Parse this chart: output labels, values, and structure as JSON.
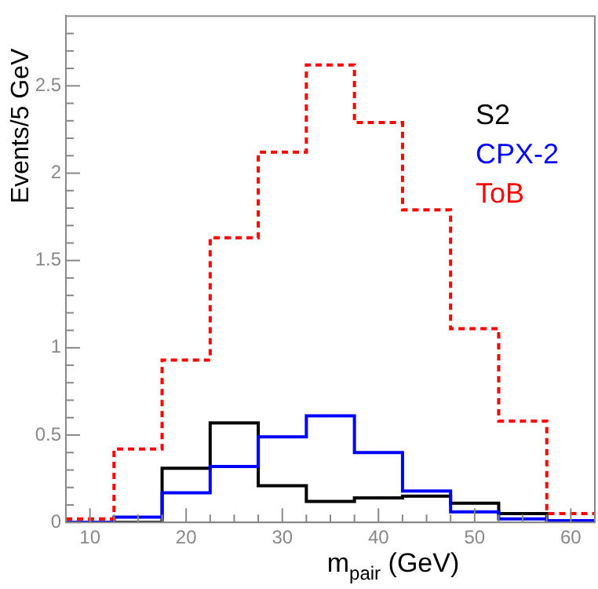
{
  "chart_data": {
    "type": "histogram",
    "xlabel": "m$_{pair}$ (GeV)",
    "ylabel": "Events/5 GeV",
    "bins": [
      7.5,
      12.5,
      17.5,
      22.5,
      27.5,
      32.5,
      37.5,
      42.5,
      47.5,
      52.5,
      57.5,
      62.5
    ],
    "series": [
      {
        "name": "S2",
        "color": "#000000",
        "values": [
          0,
          0,
          0.31,
          0.57,
          0.21,
          0.12,
          0.14,
          0.15,
          0.11,
          0.05,
          0
        ]
      },
      {
        "name": "CPX-2",
        "color": "#0000ff",
        "values": [
          0,
          0.03,
          0.17,
          0.32,
          0.49,
          0.61,
          0.4,
          0.18,
          0.06,
          0.02,
          0.01
        ]
      },
      {
        "name": "ToB",
        "color": "#ff0000",
        "line_style": "dashed",
        "values": [
          0.02,
          0.42,
          0.93,
          1.63,
          2.12,
          2.62,
          2.29,
          1.79,
          1.11,
          0.58,
          0.05
        ]
      }
    ],
    "xlim": [
      7.5,
      62.5
    ],
    "xticks": [
      10,
      20,
      30,
      40,
      50,
      60
    ],
    "ylim": [
      0,
      2.9
    ],
    "yticks": [
      0,
      0.5,
      1,
      1.5,
      2,
      2.5
    ],
    "grid": false,
    "legend": "top right"
  }
}
